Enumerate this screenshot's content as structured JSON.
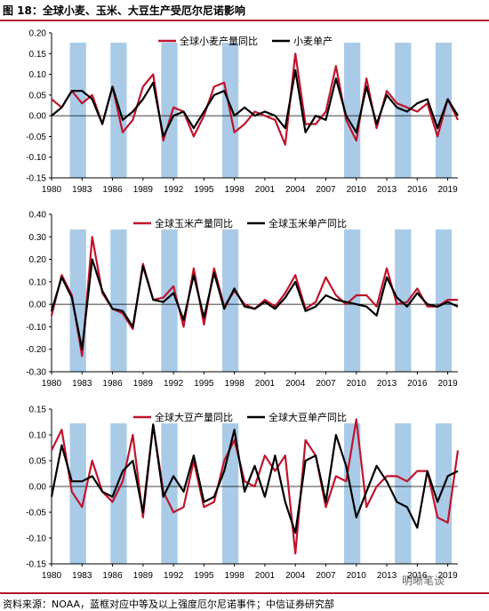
{
  "figure_title": "图 18：全球小麦、玉米、大豆生产受厄尔尼诺影响",
  "source_note": "资料来源：NOAA，蓝框对应中等及以上强度厄尔尼诺事件；中信证券研究部",
  "watermark": "明晰笔谈",
  "colors": {
    "production": "#c0142c",
    "yield": "#000000",
    "elnino_band": "#a9cbe8",
    "rule": "#b0112a"
  },
  "chart_data": [
    {
      "type": "line",
      "legend_position": "top-right",
      "x": [
        1980,
        1981,
        1982,
        1983,
        1984,
        1985,
        1986,
        1987,
        1988,
        1989,
        1990,
        1991,
        1992,
        1993,
        1994,
        1995,
        1996,
        1997,
        1998,
        1999,
        2000,
        2001,
        2002,
        2003,
        2004,
        2005,
        2006,
        2007,
        2008,
        2009,
        2010,
        2011,
        2012,
        2013,
        2014,
        2015,
        2016,
        2017,
        2018,
        2019,
        2020
      ],
      "x_ticks": [
        "1980",
        "1983",
        "1986",
        "1989",
        "1992",
        "1995",
        "1998",
        "2001",
        "2004",
        "2007",
        "2010",
        "2013",
        "2016",
        "2019"
      ],
      "x_tick_values": [
        1980,
        1983,
        1986,
        1989,
        1992,
        1995,
        1998,
        2001,
        2004,
        2007,
        2010,
        2013,
        2016,
        2019
      ],
      "ylim": [
        -0.15,
        0.2
      ],
      "y_ticks": [
        "0.20",
        "0.15",
        "0.10",
        "0.05",
        "0.00",
        "-0.05",
        "-0.10",
        "-0.15"
      ],
      "y_tick_values": [
        0.2,
        0.15,
        0.1,
        0.05,
        0.0,
        -0.05,
        -0.1,
        -0.15
      ],
      "elnino_bands": [
        [
          1982,
          1983
        ],
        [
          1986,
          1987
        ],
        [
          1991,
          1992
        ],
        [
          1997,
          1998
        ],
        [
          2009,
          2010
        ],
        [
          2014,
          2015
        ],
        [
          2018,
          2019
        ]
      ],
      "series": [
        {
          "name": "全球小麦产量同比",
          "values": [
            0.04,
            0.02,
            0.06,
            0.03,
            0.05,
            -0.02,
            0.07,
            -0.04,
            -0.01,
            0.07,
            0.1,
            -0.06,
            0.02,
            0.01,
            -0.05,
            0.0,
            0.07,
            0.08,
            -0.04,
            -0.02,
            0.01,
            0.0,
            -0.01,
            -0.07,
            0.15,
            -0.02,
            -0.02,
            0.01,
            0.12,
            -0.01,
            -0.06,
            0.09,
            -0.03,
            0.06,
            0.03,
            0.02,
            0.01,
            0.03,
            -0.05,
            0.04,
            -0.01
          ]
        },
        {
          "name": "小麦单产",
          "values": [
            0.0,
            0.02,
            0.06,
            0.06,
            0.04,
            -0.02,
            0.07,
            -0.01,
            0.01,
            0.04,
            0.08,
            -0.05,
            0.0,
            0.01,
            -0.03,
            0.01,
            0.05,
            0.06,
            0.0,
            0.02,
            0.0,
            0.01,
            0.0,
            -0.03,
            0.11,
            -0.04,
            0.0,
            -0.01,
            0.09,
            0.0,
            -0.04,
            0.07,
            -0.02,
            0.05,
            0.02,
            0.01,
            0.03,
            0.04,
            -0.03,
            0.04,
            0.0
          ]
        }
      ]
    },
    {
      "type": "line",
      "legend_position": "top-right",
      "x": [
        1980,
        1981,
        1982,
        1983,
        1984,
        1985,
        1986,
        1987,
        1988,
        1989,
        1990,
        1991,
        1992,
        1993,
        1994,
        1995,
        1996,
        1997,
        1998,
        1999,
        2000,
        2001,
        2002,
        2003,
        2004,
        2005,
        2006,
        2007,
        2008,
        2009,
        2010,
        2011,
        2012,
        2013,
        2014,
        2015,
        2016,
        2017,
        2018,
        2019,
        2020
      ],
      "x_ticks": [
        "1980",
        "1983",
        "1986",
        "1989",
        "1992",
        "1995",
        "1998",
        "2001",
        "2004",
        "2007",
        "2010",
        "2013",
        "2016",
        "2019"
      ],
      "x_tick_values": [
        1980,
        1983,
        1986,
        1989,
        1992,
        1995,
        1998,
        2001,
        2004,
        2007,
        2010,
        2013,
        2016,
        2019
      ],
      "ylim": [
        -0.3,
        0.4
      ],
      "y_ticks": [
        "0.40",
        "0.30",
        "0.20",
        "0.10",
        "0.00",
        "-0.10",
        "-0.20",
        "-0.30"
      ],
      "y_tick_values": [
        0.4,
        0.3,
        0.2,
        0.1,
        0.0,
        -0.1,
        -0.2,
        -0.3
      ],
      "elnino_bands": [
        [
          1982,
          1983
        ],
        [
          1986,
          1987
        ],
        [
          1991,
          1992
        ],
        [
          1997,
          1998
        ],
        [
          2009,
          2010
        ],
        [
          2014,
          2015
        ],
        [
          2018,
          2019
        ]
      ],
      "series": [
        {
          "name": "全球玉米产量同比",
          "values": [
            -0.05,
            0.13,
            0.04,
            -0.23,
            0.3,
            0.05,
            -0.02,
            -0.04,
            -0.11,
            0.18,
            0.02,
            0.03,
            0.08,
            -0.1,
            0.16,
            -0.09,
            0.16,
            -0.01,
            0.06,
            0.0,
            -0.02,
            0.02,
            -0.01,
            0.05,
            0.13,
            -0.02,
            0.01,
            0.12,
            0.04,
            0.0,
            0.04,
            0.04,
            -0.01,
            0.16,
            0.0,
            0.01,
            0.07,
            -0.01,
            -0.01,
            0.02,
            0.02
          ]
        },
        {
          "name": "全球玉米单产同比",
          "values": [
            -0.03,
            0.12,
            0.03,
            -0.2,
            0.2,
            0.06,
            -0.02,
            -0.03,
            -0.1,
            0.17,
            0.02,
            0.01,
            0.05,
            -0.07,
            0.13,
            -0.06,
            0.14,
            -0.02,
            0.07,
            -0.01,
            -0.02,
            0.01,
            -0.02,
            0.03,
            0.1,
            -0.03,
            -0.01,
            0.04,
            0.02,
            0.01,
            0.0,
            -0.01,
            -0.05,
            0.12,
            0.03,
            -0.01,
            0.05,
            0.0,
            -0.01,
            0.01,
            -0.01
          ]
        }
      ]
    },
    {
      "type": "line",
      "legend_position": "top-right",
      "x": [
        1980,
        1981,
        1982,
        1983,
        1984,
        1985,
        1986,
        1987,
        1988,
        1989,
        1990,
        1991,
        1992,
        1993,
        1994,
        1995,
        1996,
        1997,
        1998,
        1999,
        2000,
        2001,
        2002,
        2003,
        2004,
        2005,
        2006,
        2007,
        2008,
        2009,
        2010,
        2011,
        2012,
        2013,
        2014,
        2015,
        2016,
        2017,
        2018,
        2019,
        2020
      ],
      "x_ticks": [
        "1980",
        "1983",
        "1986",
        "1989",
        "1992",
        "1995",
        "1998",
        "2001",
        "2004",
        "2007",
        "2010",
        "2013",
        "2016",
        "2019"
      ],
      "x_tick_values": [
        1980,
        1983,
        1986,
        1989,
        1992,
        1995,
        1998,
        2001,
        2004,
        2007,
        2010,
        2013,
        2016,
        2019
      ],
      "ylim": [
        -0.15,
        0.15
      ],
      "y_ticks": [
        "0.15",
        "0.10",
        "0.05",
        "0.00",
        "-0.05",
        "-0.10",
        "-0.15"
      ],
      "y_tick_values": [
        0.15,
        0.1,
        0.05,
        0.0,
        -0.05,
        -0.1,
        -0.15
      ],
      "elnino_bands": [
        [
          1982,
          1983
        ],
        [
          1986,
          1987
        ],
        [
          1991,
          1992
        ],
        [
          1997,
          1998
        ],
        [
          2009,
          2010
        ],
        [
          2014,
          2015
        ],
        [
          2018,
          2019
        ]
      ],
      "series": [
        {
          "name": "全球大豆产量同比",
          "values": [
            0.07,
            0.11,
            -0.01,
            -0.04,
            0.05,
            -0.01,
            -0.03,
            0.01,
            0.1,
            -0.06,
            0.12,
            -0.01,
            -0.05,
            -0.04,
            0.05,
            -0.04,
            -0.03,
            0.05,
            0.09,
            0.01,
            0.0,
            0.06,
            0.03,
            0.06,
            -0.13,
            0.09,
            0.06,
            -0.04,
            0.02,
            0.01,
            0.13,
            -0.04,
            0.0,
            0.02,
            0.02,
            0.01,
            0.03,
            0.03,
            -0.06,
            -0.07,
            0.07
          ]
        },
        {
          "name": "全球大豆单产同比",
          "values": [
            -0.02,
            0.08,
            0.01,
            0.01,
            0.02,
            -0.01,
            -0.02,
            0.03,
            0.05,
            -0.05,
            0.12,
            -0.02,
            0.02,
            -0.01,
            0.06,
            -0.03,
            -0.02,
            0.03,
            0.11,
            -0.01,
            0.04,
            -0.02,
            0.06,
            -0.03,
            -0.09,
            0.05,
            0.06,
            -0.03,
            0.1,
            0.04,
            -0.06,
            -0.01,
            0.04,
            0.01,
            -0.03,
            -0.04,
            -0.08,
            0.03,
            -0.03,
            0.02,
            0.03
          ]
        }
      ]
    }
  ]
}
